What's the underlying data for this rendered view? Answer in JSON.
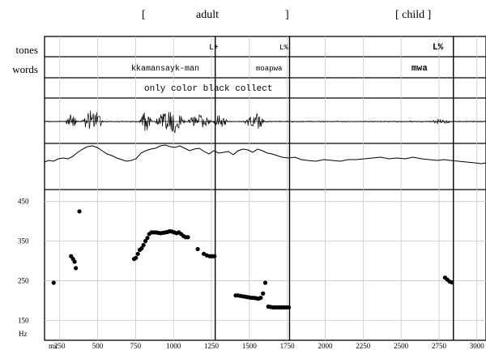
{
  "header": {
    "adult_open": "[",
    "adult_label": "adult",
    "adult_close": "]",
    "child_label": "[ child ]"
  },
  "tier_labels": {
    "tones": "tones",
    "words": "words"
  },
  "annotations": {
    "tones": [
      "L+",
      "L%",
      "L%"
    ],
    "words": [
      "kkamansayk-man",
      "moapwa",
      "mwa"
    ],
    "gloss": "only color black collect"
  },
  "chart_data": {
    "type": "scatter",
    "title": "",
    "xlabel": "ms",
    "ylabel": "Hz",
    "xlim": [
      150,
      3060
    ],
    "ylim": [
      100,
      480
    ],
    "xticks": [
      250,
      500,
      750,
      1000,
      1250,
      1500,
      1750,
      2000,
      2250,
      2500,
      2750,
      3000
    ],
    "yticks": [
      450,
      350,
      250,
      150
    ],
    "grid": true,
    "cursor_lines_ms": [
      1275,
      1765,
      2845
    ],
    "series": [
      {
        "points": [
          [
            210,
            245
          ],
          [
            325,
            312
          ],
          [
            338,
            305
          ],
          [
            348,
            298
          ],
          [
            356,
            282
          ],
          [
            380,
            425
          ],
          [
            740,
            305
          ],
          [
            752,
            308
          ],
          [
            765,
            318
          ],
          [
            778,
            328
          ],
          [
            790,
            332
          ],
          [
            802,
            340
          ],
          [
            815,
            350
          ],
          [
            828,
            358
          ],
          [
            840,
            368
          ],
          [
            855,
            372
          ],
          [
            870,
            372
          ],
          [
            885,
            372
          ],
          [
            900,
            371
          ],
          [
            915,
            370
          ],
          [
            930,
            371
          ],
          [
            945,
            372
          ],
          [
            960,
            373
          ],
          [
            975,
            375
          ],
          [
            990,
            374
          ],
          [
            1005,
            372
          ],
          [
            1020,
            370
          ],
          [
            1035,
            372
          ],
          [
            1050,
            368
          ],
          [
            1065,
            363
          ],
          [
            1080,
            360
          ],
          [
            1095,
            360
          ],
          [
            1160,
            330
          ],
          [
            1200,
            318
          ],
          [
            1220,
            314
          ],
          [
            1240,
            312
          ],
          [
            1255,
            312
          ],
          [
            1270,
            312
          ],
          [
            1410,
            213
          ],
          [
            1425,
            213
          ],
          [
            1440,
            212
          ],
          [
            1455,
            211
          ],
          [
            1470,
            210
          ],
          [
            1485,
            209
          ],
          [
            1500,
            208
          ],
          [
            1515,
            207
          ],
          [
            1530,
            207
          ],
          [
            1545,
            206
          ],
          [
            1560,
            205
          ],
          [
            1575,
            207
          ],
          [
            1590,
            218
          ],
          [
            1605,
            245
          ],
          [
            1625,
            185
          ],
          [
            1640,
            184
          ],
          [
            1655,
            183
          ],
          [
            1670,
            183
          ],
          [
            1685,
            183
          ],
          [
            1700,
            183
          ],
          [
            1715,
            183
          ],
          [
            1730,
            183
          ],
          [
            1745,
            183
          ],
          [
            1760,
            183
          ],
          [
            2790,
            258
          ],
          [
            2805,
            253
          ],
          [
            2820,
            248
          ],
          [
            2835,
            246
          ]
        ]
      }
    ]
  }
}
